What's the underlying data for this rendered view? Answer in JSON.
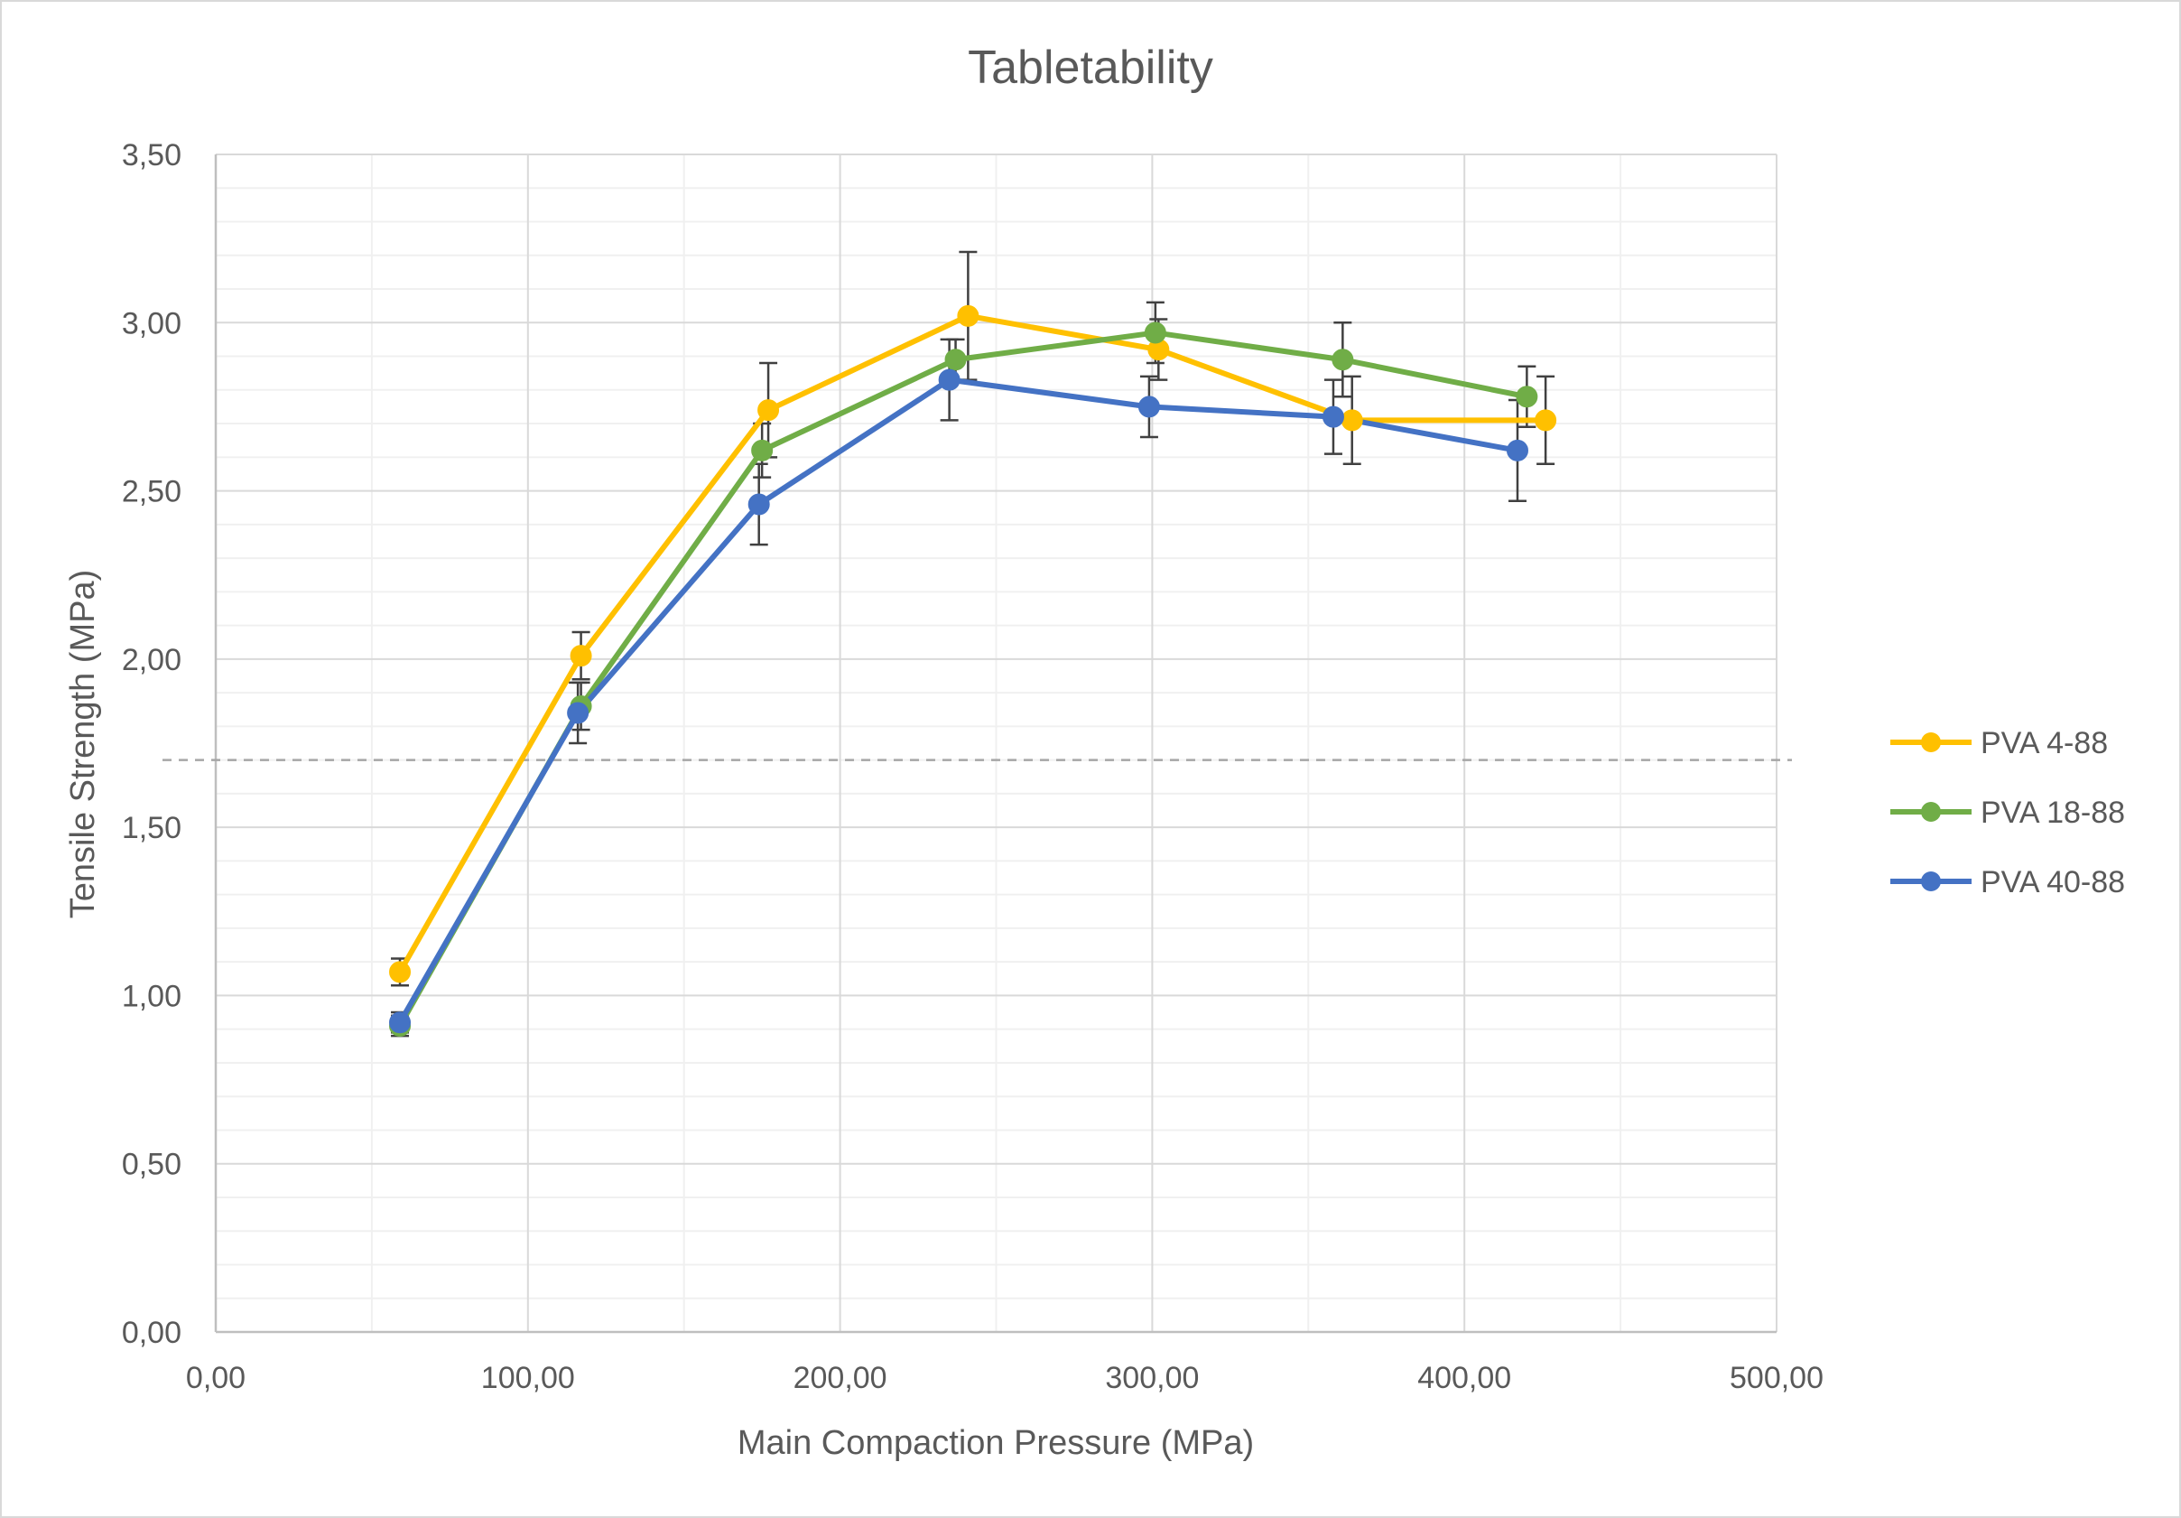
{
  "chart_data": {
    "type": "line",
    "title": "Tabletability",
    "xlabel": "Main Compaction Pressure (MPa)",
    "ylabel": "Tensile Strength (MPa)",
    "xlim": [
      0,
      500
    ],
    "ylim": [
      0,
      3.5
    ],
    "x_ticks": [
      "0,00",
      "100,00",
      "200,00",
      "300,00",
      "400,00",
      "500,00"
    ],
    "y_ticks": [
      "0,00",
      "0,50",
      "1,00",
      "1,50",
      "2,00",
      "2,50",
      "3,00",
      "3,50"
    ],
    "x_tick_values": [
      0,
      100,
      200,
      300,
      400,
      500
    ],
    "y_tick_values": [
      0,
      0.5,
      1.0,
      1.5,
      2.0,
      2.5,
      3.0,
      3.5
    ],
    "grid": true,
    "legend_position": "right",
    "reference_line": {
      "y": 1.7,
      "style": "dashed",
      "color": "#a6a6a6"
    },
    "series": [
      {
        "name": "PVA 4-88",
        "color": "#ffc000",
        "x": [
          59,
          117,
          177,
          241,
          302,
          364,
          426
        ],
        "y": [
          1.07,
          2.01,
          2.74,
          3.02,
          2.92,
          2.71,
          2.71
        ],
        "error": [
          0.04,
          0.07,
          0.14,
          0.19,
          0.09,
          0.13,
          0.13
        ]
      },
      {
        "name": "PVA 18-88",
        "color": "#70ad47",
        "x": [
          59,
          117,
          175,
          237,
          301,
          361,
          420
        ],
        "y": [
          0.91,
          1.86,
          2.62,
          2.89,
          2.97,
          2.89,
          2.78
        ],
        "error": [
          0.03,
          0.07,
          0.08,
          0.06,
          0.09,
          0.11,
          0.09
        ]
      },
      {
        "name": "PVA 40-88",
        "color": "#4472c4",
        "x": [
          59,
          116,
          174,
          235,
          299,
          358,
          417
        ],
        "y": [
          0.92,
          1.84,
          2.46,
          2.83,
          2.75,
          2.72,
          2.62
        ],
        "error": [
          0.03,
          0.09,
          0.12,
          0.12,
          0.09,
          0.11,
          0.15
        ]
      }
    ]
  }
}
